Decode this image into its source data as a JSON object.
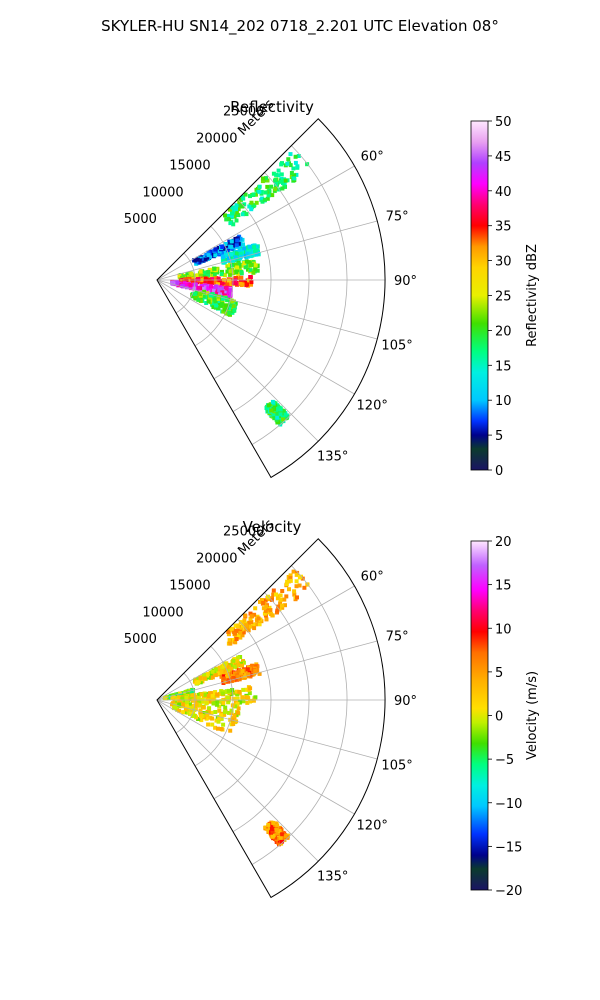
{
  "figure": {
    "title": "SKYLER-HU  SN14_202  0718_2.201 UTC Elevation 08°"
  },
  "chart_data": [
    {
      "type": "polar-sector-heatmap",
      "title": "Reflectivity",
      "r_axis_label": "Meters",
      "r_ticks": [
        5000,
        10000,
        15000,
        20000,
        25000
      ],
      "r_tick_labels": [
        "5000",
        "10000",
        "15000",
        "20000",
        "25000"
      ],
      "r_max": 30000,
      "theta_range_deg": [
        45,
        150
      ],
      "theta_ticks_deg": [
        60,
        75,
        90,
        105,
        120,
        135
      ],
      "theta_tick_labels": [
        "60°",
        "75°",
        "90°",
        "105°",
        "120°",
        "135°"
      ],
      "colorbar": {
        "label": "Reflectivity dBZ",
        "range": [
          0,
          50
        ],
        "ticks": [
          0,
          5,
          10,
          15,
          20,
          25,
          30,
          35,
          40,
          45,
          50
        ],
        "tick_labels": [
          "0",
          "5",
          "10",
          "15",
          "20",
          "25",
          "30",
          "35",
          "40",
          "45",
          "50"
        ],
        "colormap": "pyart_HomeyerRainbow"
      },
      "echo_regions": [
        {
          "theta_deg": [
            46,
            54
          ],
          "r": [
            12000,
            25000
          ],
          "value": 18
        },
        {
          "theta_deg": [
            62,
            68
          ],
          "r": [
            5500,
            12500
          ],
          "value": 8
        },
        {
          "theta_deg": [
            70,
            76
          ],
          "r": [
            9000,
            14000
          ],
          "value": 14
        },
        {
          "theta_deg": [
            78,
            86
          ],
          "r": [
            3000,
            13500
          ],
          "value": 22
        },
        {
          "theta_deg": [
            88,
            94
          ],
          "r": [
            3000,
            12500
          ],
          "value": 34
        },
        {
          "theta_deg": [
            96,
            104
          ],
          "r": [
            2000,
            10000
          ],
          "value": 42
        },
        {
          "theta_deg": [
            104,
            116
          ],
          "r": [
            5000,
            11000
          ],
          "value": 20
        },
        {
          "theta_deg": [
            136,
            140
          ],
          "r": [
            22000,
            25000
          ],
          "value": 18
        }
      ]
    },
    {
      "type": "polar-sector-heatmap",
      "title": "Velocity",
      "r_axis_label": "Meters",
      "r_ticks": [
        5000,
        10000,
        15000,
        20000,
        25000
      ],
      "r_tick_labels": [
        "5000",
        "10000",
        "15000",
        "20000",
        "25000"
      ],
      "r_max": 30000,
      "theta_range_deg": [
        45,
        150
      ],
      "theta_ticks_deg": [
        60,
        75,
        90,
        105,
        120,
        135
      ],
      "theta_tick_labels": [
        "60°",
        "75°",
        "90°",
        "105°",
        "120°",
        "135°"
      ],
      "colorbar": {
        "label": "Velocity (m/s)",
        "range": [
          -20,
          20
        ],
        "ticks": [
          -20,
          -15,
          -10,
          -5,
          0,
          5,
          10,
          15,
          20
        ],
        "tick_labels": [
          "−20",
          "−15",
          "−10",
          "−5",
          "0",
          "5",
          "10",
          "15",
          "20"
        ],
        "colormap": "pyart_BuDRd18"
      },
      "echo_regions": [
        {
          "theta_deg": [
            46,
            54
          ],
          "r": [
            12000,
            25000
          ],
          "value": 4
        },
        {
          "theta_deg": [
            62,
            68
          ],
          "r": [
            5500,
            12500
          ],
          "value": 1
        },
        {
          "theta_deg": [
            70,
            76
          ],
          "r": [
            9000,
            14000
          ],
          "value": 6
        },
        {
          "theta_deg": [
            74,
            80
          ],
          "r": [
            1000,
            5000
          ],
          "value": -3
        },
        {
          "theta_deg": [
            82,
            92
          ],
          "r": [
            2000,
            13000
          ],
          "value": 1
        },
        {
          "theta_deg": [
            92,
            116
          ],
          "r": [
            2000,
            11000
          ],
          "value": 1
        },
        {
          "theta_deg": [
            136,
            140
          ],
          "r": [
            22000,
            25000
          ],
          "value": 6
        }
      ]
    }
  ]
}
